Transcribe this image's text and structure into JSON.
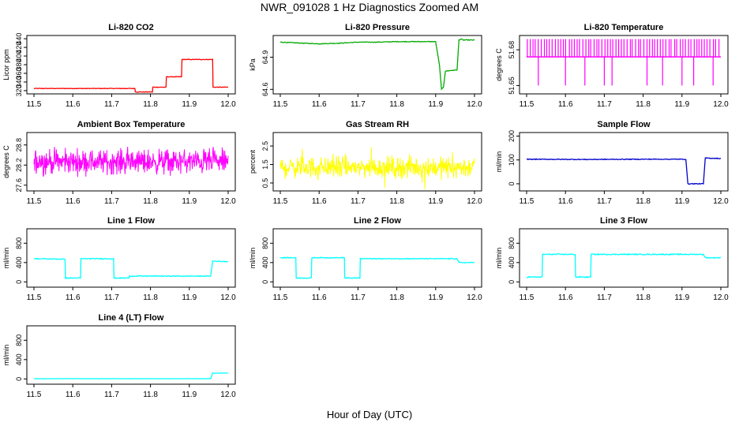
{
  "figure": {
    "title": "NWR_091028  1 Hz Diagnostics Zoomed AM",
    "xlabel": "Hour of Day (UTC)"
  },
  "chart_data": [
    {
      "type": "line",
      "title": "Li-820 CO2",
      "ylabel": "Licor ppm",
      "color": "#ff0000",
      "xlim": [
        11.5,
        12.0
      ],
      "ylim": [
        318,
        442
      ],
      "xticks": [
        "11.5",
        "11.6",
        "11.7",
        "11.8",
        "11.9",
        "12.0"
      ],
      "yticks": [
        [
          320,
          "320"
        ],
        [
          340,
          "340"
        ],
        [
          360,
          "360"
        ],
        [
          380,
          "380"
        ],
        [
          400,
          "400"
        ],
        [
          420,
          "420"
        ],
        [
          440,
          "440"
        ]
      ],
      "noise": 0.6,
      "x": [
        11.5,
        11.76,
        11.761,
        11.805,
        11.806,
        11.84,
        11.841,
        11.88,
        11.881,
        11.96,
        11.961,
        11.97,
        12.0
      ],
      "y": [
        325,
        325,
        317,
        317,
        328,
        328,
        352,
        352,
        392,
        392,
        328,
        328,
        328
      ]
    },
    {
      "type": "line",
      "title": "Li-820 Pressure",
      "ylabel": "kPa",
      "color": "#00aa00",
      "xlim": [
        11.5,
        12.0
      ],
      "ylim": [
        64.58,
        65.08
      ],
      "xticks": [
        "11.5",
        "11.6",
        "11.7",
        "11.8",
        "11.9",
        "12.0"
      ],
      "yticks": [
        [
          64.6,
          "64.6"
        ],
        [
          64.9,
          "64.9"
        ]
      ],
      "noise": 0.003,
      "x": [
        11.5,
        11.53,
        11.56,
        11.6,
        11.65,
        11.7,
        11.75,
        11.8,
        11.85,
        11.9,
        11.91,
        11.915,
        11.92,
        11.925,
        11.95,
        11.955,
        11.96,
        11.965,
        11.97,
        12.0
      ],
      "y": [
        65.04,
        65.035,
        65.03,
        65.025,
        65.03,
        65.04,
        65.04,
        65.045,
        65.045,
        65.045,
        64.82,
        64.6,
        64.62,
        64.77,
        64.78,
        64.78,
        65.06,
        65.07,
        65.06,
        65.06
      ]
    },
    {
      "type": "spikes",
      "title": "Li-820 Temperature",
      "ylabel": "degrees C",
      "color": "#ff00ff",
      "xlim": [
        11.5,
        12.0
      ],
      "ylim": [
        51.645,
        51.69
      ],
      "xticks": [
        "11.5",
        "11.6",
        "11.7",
        "11.8",
        "11.9",
        "12.0"
      ],
      "yticks": [
        [
          51.65,
          "51.65"
        ],
        [
          51.68,
          "51.68"
        ]
      ],
      "base": 51.674,
      "up": 51.689,
      "down": 51.65,
      "down_x": [
        11.53,
        11.6,
        11.65,
        11.7,
        11.72,
        11.81,
        11.85,
        11.9,
        11.93,
        11.98
      ]
    },
    {
      "type": "noise",
      "title": "Ambient Box Temperature",
      "ylabel": "degrees C",
      "color": "#ff00ff",
      "xlim": [
        11.5,
        12.0
      ],
      "ylim": [
        27.5,
        29.1
      ],
      "xticks": [
        "11.5",
        "11.6",
        "11.7",
        "11.8",
        "11.9",
        "12.0"
      ],
      "yticks": [
        [
          27.6,
          "27.6"
        ],
        [
          28.2,
          "28.2"
        ],
        [
          28.8,
          "28.8"
        ]
      ],
      "mean": 28.3,
      "spread": 0.22,
      "peak": 0.48
    },
    {
      "type": "noise",
      "title": "Gas Stream RH",
      "ylabel": "percent",
      "color": "#ffff00",
      "xlim": [
        11.5,
        12.0
      ],
      "ylim": [
        0.2,
        3.1
      ],
      "xticks": [
        "11.5",
        "11.6",
        "11.7",
        "11.8",
        "11.9",
        "12.0"
      ],
      "yticks": [
        [
          0.5,
          "0.5"
        ],
        [
          1.5,
          "1.5"
        ],
        [
          2.5,
          "2.5"
        ]
      ],
      "mean": 1.35,
      "spread": 0.35,
      "peak": 1.2
    },
    {
      "type": "line",
      "title": "Sample Flow",
      "ylabel": "ml/min",
      "color": "#0000cc",
      "xlim": [
        11.5,
        12.0
      ],
      "ylim": [
        -20,
        205
      ],
      "xticks": [
        "11.5",
        "11.6",
        "11.7",
        "11.8",
        "11.9",
        "12.0"
      ],
      "yticks": [
        [
          0,
          "0"
        ],
        [
          100,
          "100"
        ],
        [
          200,
          "200"
        ]
      ],
      "noise": 1.5,
      "x": [
        11.5,
        11.65,
        11.8,
        11.91,
        11.915,
        11.955,
        11.96,
        12.0
      ],
      "y": [
        103,
        102,
        103,
        103,
        0,
        0,
        108,
        106
      ]
    },
    {
      "type": "line",
      "title": "Line 1 Flow",
      "ylabel": "ml/min",
      "color": "#00ffff",
      "xlim": [
        11.5,
        12.0
      ],
      "ylim": [
        -60,
        1050
      ],
      "xticks": [
        "11.5",
        "11.6",
        "11.7",
        "11.8",
        "11.9",
        "12.0"
      ],
      "yticks": [
        [
          0,
          "0"
        ],
        [
          400,
          "400"
        ],
        [
          800,
          "800"
        ]
      ],
      "noise": 8,
      "x": [
        11.5,
        11.58,
        11.581,
        11.62,
        11.621,
        11.705,
        11.706,
        11.745,
        11.746,
        11.955,
        11.96,
        12.0
      ],
      "y": [
        480,
        470,
        80,
        80,
        480,
        480,
        80,
        80,
        120,
        120,
        430,
        420
      ]
    },
    {
      "type": "line",
      "title": "Line 2 Flow",
      "ylabel": "ml/min",
      "color": "#00ffff",
      "xlim": [
        11.5,
        12.0
      ],
      "ylim": [
        -60,
        1050
      ],
      "xticks": [
        "11.5",
        "11.6",
        "11.7",
        "11.8",
        "11.9",
        "12.0"
      ],
      "yticks": [
        [
          0,
          "0"
        ],
        [
          400,
          "400"
        ],
        [
          800,
          "800"
        ]
      ],
      "noise": 8,
      "x": [
        11.5,
        11.54,
        11.541,
        11.58,
        11.581,
        11.665,
        11.666,
        11.705,
        11.706,
        11.955,
        11.96,
        12.0
      ],
      "y": [
        500,
        500,
        80,
        80,
        500,
        500,
        80,
        80,
        480,
        480,
        400,
        400
      ]
    },
    {
      "type": "line",
      "title": "Line 3 Flow",
      "ylabel": "ml/min",
      "color": "#00ffff",
      "xlim": [
        11.5,
        12.0
      ],
      "ylim": [
        -60,
        1050
      ],
      "xticks": [
        "11.5",
        "11.6",
        "11.7",
        "11.8",
        "11.9",
        "12.0"
      ],
      "yticks": [
        [
          0,
          "0"
        ],
        [
          400,
          "400"
        ],
        [
          800,
          "800"
        ]
      ],
      "noise": 10,
      "x": [
        11.5,
        11.54,
        11.541,
        11.625,
        11.626,
        11.665,
        11.666,
        11.955,
        11.96,
        12.0
      ],
      "y": [
        100,
        100,
        570,
        570,
        100,
        100,
        570,
        570,
        500,
        500
      ]
    },
    {
      "type": "line",
      "title": "Line 4 (LT) Flow",
      "ylabel": "ml/min",
      "color": "#00ffff",
      "xlim": [
        11.5,
        12.0
      ],
      "ylim": [
        -60,
        1050
      ],
      "xticks": [
        "11.5",
        "11.6",
        "11.7",
        "11.8",
        "11.9",
        "12.0"
      ],
      "yticks": [
        [
          0,
          "0"
        ],
        [
          400,
          "400"
        ],
        [
          800,
          "800"
        ]
      ],
      "noise": 3,
      "x": [
        11.5,
        11.955,
        11.96,
        12.0
      ],
      "y": [
        5,
        5,
        120,
        120
      ]
    }
  ]
}
